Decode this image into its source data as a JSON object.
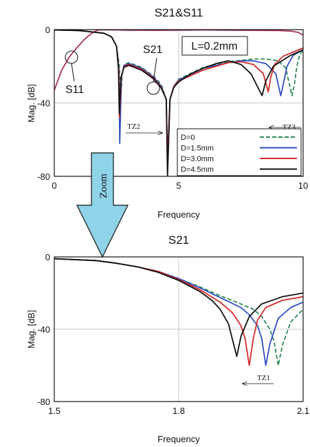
{
  "chart_data": [
    {
      "type": "line",
      "title": "S21&S11",
      "xlabel": "Frequency",
      "ylabel": "Mag. [dB]",
      "xlim": [
        0,
        10
      ],
      "ylim": [
        -80,
        0
      ],
      "xticks": [
        "0",
        "5",
        "10"
      ],
      "yticks": [
        "0",
        "-40",
        "-80"
      ],
      "grid": true,
      "legend_position": "bottom-right",
      "annotations": {
        "box": "L=0.2mm",
        "s11": "S11",
        "s21": "S21",
        "tz2": "TZ2",
        "tz3": "TZ3"
      },
      "s11_curve": {
        "name": "S11",
        "color": "#a8325a",
        "x": [
          0,
          0.3,
          0.6,
          0.9,
          1.2,
          1.5,
          1.7,
          1.8,
          1.9,
          2.0,
          2.5,
          3,
          4,
          5,
          6,
          7,
          8,
          9,
          9.5,
          9.8,
          10
        ],
        "y": [
          -33,
          -22,
          -15,
          -10,
          -5.5,
          -2,
          -0.5,
          -0.2,
          -0.1,
          -0.1,
          -0.2,
          -0.3,
          -0.4,
          -0.3,
          -0.2,
          -0.3,
          -0.4,
          -0.5,
          -0.8,
          -1.5,
          -3
        ]
      },
      "series": [
        {
          "name": "D=0",
          "color": "#2e8b57",
          "dash": true,
          "x": [
            0,
            1,
            2,
            2.3,
            2.5,
            2.62,
            2.65,
            2.72,
            2.8,
            3,
            3.5,
            4,
            4.3,
            4.5,
            4.55,
            4.65,
            4.8,
            5,
            6,
            7,
            8,
            8.5,
            9,
            9.3,
            9.55,
            9.65,
            9.75,
            9.85,
            10
          ],
          "y": [
            -0.2,
            -0.5,
            -2,
            -4,
            -9,
            -20,
            -47,
            -25,
            -19,
            -18,
            -20.5,
            -25.5,
            -30,
            -38,
            -72,
            -38,
            -31,
            -27,
            -20.5,
            -17.5,
            -16,
            -16,
            -17,
            -21,
            -36,
            -30,
            -20,
            -14,
            -11
          ]
        },
        {
          "name": "D=1.5mm",
          "color": "#2f4dc4",
          "dash": false,
          "x": [
            0,
            1,
            2,
            2.3,
            2.5,
            2.6,
            2.63,
            2.7,
            2.8,
            3,
            3.5,
            4,
            4.3,
            4.5,
            4.55,
            4.65,
            4.8,
            5,
            6,
            7,
            7.5,
            8,
            8.5,
            8.9,
            9.1,
            9.2,
            9.35,
            9.6,
            10
          ],
          "y": [
            -0.2,
            -0.5,
            -2,
            -4,
            -9,
            -22,
            -62,
            -26,
            -19.5,
            -18.5,
            -21,
            -26,
            -31,
            -38,
            -72,
            -38,
            -31,
            -27.5,
            -21,
            -18,
            -17,
            -17,
            -18.5,
            -24,
            -36,
            -30,
            -20,
            -14,
            -11
          ]
        },
        {
          "name": "D=3.0mm",
          "color": "#d42a2a",
          "dash": false,
          "x": [
            0,
            1,
            2,
            2.3,
            2.5,
            2.59,
            2.62,
            2.69,
            2.8,
            3,
            3.5,
            4,
            4.3,
            4.5,
            4.55,
            4.65,
            4.8,
            5,
            6,
            6.5,
            7,
            7.5,
            8,
            8.4,
            8.6,
            8.7,
            8.85,
            9.2,
            10
          ],
          "y": [
            -0.2,
            -0.5,
            -2,
            -4,
            -9,
            -22,
            -48,
            -26,
            -20,
            -19,
            -21.5,
            -26.5,
            -31.5,
            -38,
            -72,
            -38,
            -31,
            -28,
            -22,
            -20,
            -18,
            -17.5,
            -19,
            -24,
            -34,
            -26,
            -19,
            -14.5,
            -10
          ]
        },
        {
          "name": "D=4.5mm",
          "color": "#111111",
          "dash": false,
          "x": [
            0,
            1,
            2,
            2.3,
            2.5,
            2.58,
            2.61,
            2.68,
            2.8,
            3,
            3.5,
            4,
            4.3,
            4.5,
            4.55,
            4.65,
            4.8,
            5,
            5.5,
            6,
            6.5,
            7,
            7.5,
            7.9,
            8.2,
            8.35,
            8.5,
            8.8,
            9.5,
            10
          ],
          "y": [
            -0.2,
            -0.5,
            -2,
            -4,
            -9,
            -22,
            -46,
            -26,
            -20.5,
            -19.5,
            -22,
            -27,
            -32,
            -38,
            -80,
            -38,
            -31.5,
            -28.5,
            -24,
            -21,
            -18.5,
            -17,
            -19,
            -24,
            -32,
            -36,
            -28,
            -20,
            -14,
            -11
          ]
        }
      ]
    },
    {
      "type": "line",
      "title": "S21",
      "xlabel": "Frequency",
      "ylabel": "Mag. [dB]",
      "xlim": [
        1.5,
        2.1
      ],
      "ylim": [
        -80,
        0
      ],
      "xticks": [
        "1.5",
        "1.8",
        "2.1"
      ],
      "yticks": [
        "0",
        "-40",
        "-80"
      ],
      "grid": true,
      "annotations": {
        "tz1": "TZ1",
        "zoom": "Zoom"
      },
      "series": [
        {
          "name": "D=0",
          "color": "#2e8b57",
          "dash": true,
          "x": [
            1.5,
            1.6,
            1.65,
            1.7,
            1.75,
            1.8,
            1.85,
            1.9,
            1.95,
            1.98,
            2.0,
            2.02,
            2.03,
            2.04,
            2.05,
            2.07,
            2.1
          ],
          "y": [
            -1,
            -2,
            -3.5,
            -5.5,
            -8,
            -12,
            -16.5,
            -21.5,
            -26,
            -29,
            -33,
            -40,
            -47,
            -60,
            -49,
            -36,
            -29
          ]
        },
        {
          "name": "D=1.5mm",
          "color": "#2f4dc4",
          "dash": false,
          "x": [
            1.5,
            1.6,
            1.65,
            1.7,
            1.75,
            1.8,
            1.85,
            1.9,
            1.95,
            1.97,
            1.99,
            2.0,
            2.01,
            2.02,
            2.04,
            2.07,
            2.1
          ],
          "y": [
            -1,
            -2,
            -3.5,
            -5.5,
            -8,
            -12,
            -17,
            -22.5,
            -28,
            -32,
            -38,
            -45,
            -60,
            -48,
            -34,
            -28,
            -25
          ]
        },
        {
          "name": "D=3.0mm",
          "color": "#d42a2a",
          "dash": false,
          "x": [
            1.5,
            1.6,
            1.65,
            1.7,
            1.75,
            1.8,
            1.85,
            1.9,
            1.93,
            1.95,
            1.96,
            1.97,
            1.98,
            1.99,
            2.01,
            2.05,
            2.1
          ],
          "y": [
            -1,
            -2,
            -3.5,
            -5.5,
            -8,
            -12.5,
            -18,
            -25,
            -31,
            -38,
            -45,
            -60,
            -45,
            -35,
            -28,
            -24,
            -22
          ]
        },
        {
          "name": "D=4.5mm",
          "color": "#111111",
          "dash": false,
          "x": [
            1.5,
            1.6,
            1.65,
            1.7,
            1.75,
            1.8,
            1.85,
            1.88,
            1.9,
            1.92,
            1.93,
            1.94,
            1.95,
            1.97,
            2.0,
            2.05,
            2.1
          ],
          "y": [
            -1,
            -2,
            -3.5,
            -5.5,
            -8.5,
            -13,
            -19,
            -24,
            -29,
            -37,
            -46,
            -55,
            -44,
            -33,
            -26,
            -22,
            -20
          ]
        }
      ]
    }
  ]
}
